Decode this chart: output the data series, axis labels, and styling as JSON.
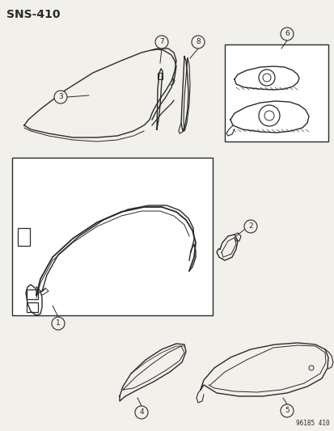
{
  "title": "SNS-410",
  "footer": "96185 410",
  "bg_color": "#f2f0eb",
  "line_color": "#2a2a2a",
  "figsize": [
    4.14,
    5.33
  ],
  "dpi": 100
}
